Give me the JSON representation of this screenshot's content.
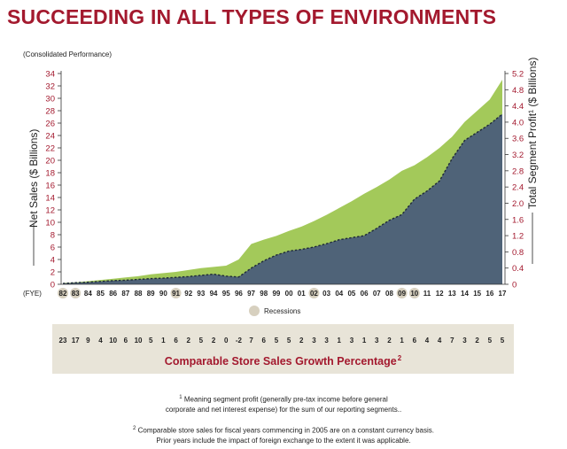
{
  "title": "SUCCEEDING IN ALL TYPES OF ENVIRONMENTS",
  "subtitle": "(Consolidated Performance)",
  "legend_label": "Recessions",
  "fye_label": "(FYE)",
  "comp_title": "Comparable Store Sales Growth Percentage",
  "comp_title_sup": "2",
  "footnote1": {
    "sup": "1",
    "line1": "Meaning segment profit (generally pre-tax income before general",
    "line2": "corporate and net interest expense) for the sum of our reporting segments.."
  },
  "footnote2": {
    "sup": "2",
    "line1": "Comparable store sales for fiscal years commencing in 2005 are on a constant currency basis.",
    "line2": "Prior years include the impact of foreign exchange to the extent it was applicable."
  },
  "colors": {
    "title": "#a3192e",
    "net_sales_fill": "#a3c95a",
    "profit_fill": "#4f6378",
    "recession": "#d7d0bf",
    "comp_band": "#e8e4d8"
  },
  "chart_data": {
    "type": "area",
    "title": "SUCCEEDING IN ALL TYPES OF ENVIRONMENTS",
    "xlabel": "(FYE)",
    "ylabel_left": "Net Sales ($ Billions)",
    "ylabel_right": "Total Segment Profit¹ ($ Billions)",
    "y_left_range": [
      0,
      34
    ],
    "y_left_ticks": [
      0,
      2,
      4,
      6,
      8,
      10,
      12,
      14,
      16,
      18,
      20,
      22,
      24,
      26,
      28,
      30,
      32,
      34
    ],
    "y_right_range": [
      0,
      5.2
    ],
    "y_right_ticks": [
      "0",
      "0.4",
      "0.8",
      "1.2",
      "1.6",
      "2.0",
      "2.4",
      "2.8",
      "3.2",
      "3.6",
      "4.0",
      "4.4",
      "4.8",
      "5.2"
    ],
    "categories": [
      "82",
      "83",
      "84",
      "85",
      "86",
      "87",
      "88",
      "89",
      "90",
      "91",
      "92",
      "93",
      "94",
      "95",
      "96",
      "97",
      "98",
      "99",
      "00",
      "01",
      "02",
      "03",
      "04",
      "05",
      "06",
      "07",
      "08",
      "09",
      "10",
      "11",
      "12",
      "13",
      "14",
      "15",
      "16",
      "17"
    ],
    "recession_years": [
      "82",
      "83",
      "91",
      "02",
      "09",
      "10"
    ],
    "series": [
      {
        "name": "Net Sales",
        "axis": "left",
        "values": [
          0.2,
          0.3,
          0.5,
          0.7,
          0.9,
          1.1,
          1.3,
          1.6,
          1.8,
          2.0,
          2.3,
          2.6,
          2.8,
          3.0,
          4.0,
          6.5,
          7.2,
          7.8,
          8.6,
          9.3,
          10.2,
          11.2,
          12.3,
          13.4,
          14.6,
          15.7,
          16.9,
          18.3,
          19.2,
          20.5,
          22.0,
          23.8,
          26.2,
          28.0,
          29.8,
          33.0
        ]
      },
      {
        "name": "Total Segment Profit",
        "axis": "right",
        "values": [
          0.02,
          0.04,
          0.05,
          0.07,
          0.09,
          0.1,
          0.12,
          0.14,
          0.15,
          0.17,
          0.19,
          0.22,
          0.25,
          0.2,
          0.18,
          0.4,
          0.58,
          0.72,
          0.82,
          0.86,
          0.92,
          1.0,
          1.1,
          1.15,
          1.2,
          1.38,
          1.58,
          1.72,
          2.1,
          2.3,
          2.55,
          3.1,
          3.55,
          3.75,
          3.95,
          4.2
        ]
      }
    ],
    "comp_store_sales_growth": [
      "23",
      "17",
      "9",
      "4",
      "10",
      "6",
      "10",
      "5",
      "1",
      "6",
      "2",
      "5",
      "2",
      "0",
      "-2",
      "7",
      "6",
      "5",
      "5",
      "2",
      "3",
      "3",
      "1",
      "3",
      "1",
      "3",
      "2",
      "1",
      "6",
      "4",
      "4",
      "7",
      "3",
      "2",
      "5",
      "5"
    ]
  }
}
